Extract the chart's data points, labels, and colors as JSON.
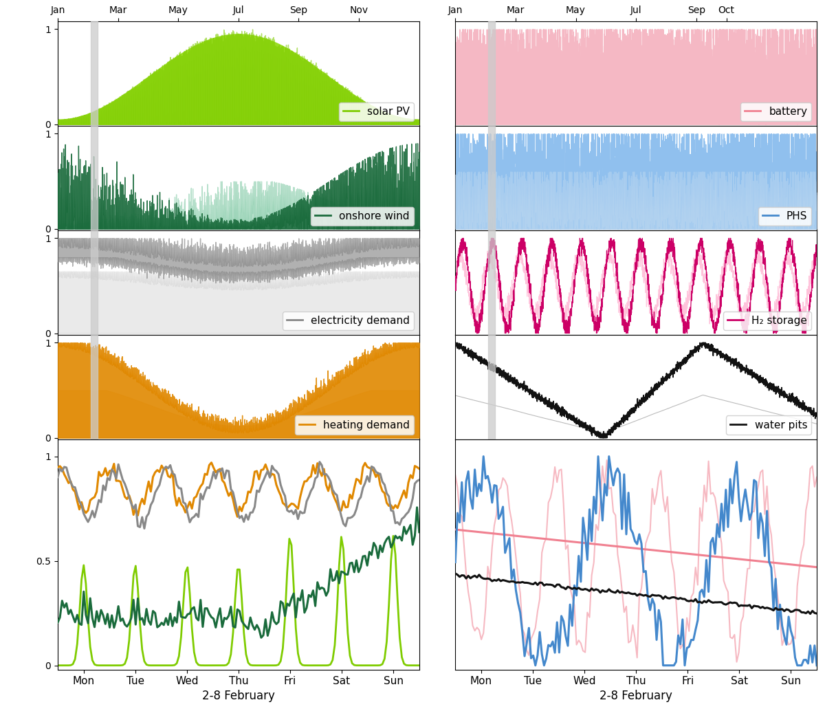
{
  "colors": {
    "solar_pv_line": "#7FCC00",
    "solar_pv_fill": "#99DD22",
    "solar_pv_fill_light": "#CCFF99",
    "onshore_wind_dark": "#1A6B3C",
    "onshore_wind_light": "#88CCAA",
    "elec_demand_dark": "#888888",
    "elec_demand_light": "#CCCCCC",
    "heating_demand_dark": "#E08800",
    "heating_demand_light": "#F5CC88",
    "battery_fill": "#F5B8C4",
    "battery_line": "#F08090",
    "phs_fill": "#90C0EE",
    "phs_line": "#4488CC",
    "phs_light": "#BDD8F0",
    "h2_dark": "#CC0066",
    "h2_light": "#FFAACC",
    "water_black": "#111111",
    "water_gray": "#AAAAAA",
    "highlight": "#CCCCCC"
  },
  "months_left": [
    "Jan",
    "Mar",
    "May",
    "Jul",
    "Sep",
    "Nov"
  ],
  "months_right": [
    "Jan",
    "Mar",
    "May",
    "Jul",
    "Sep",
    "Oct"
  ],
  "days": [
    "Mon",
    "Tue",
    "Wed",
    "Thu",
    "Fri",
    "Sat",
    "Sun"
  ],
  "xlabel_bottom": "2-8 February",
  "legends": {
    "solar_pv": "solar PV",
    "onshore_wind": "onshore wind",
    "elec_demand": "electricity demand",
    "heat_demand": "heating demand",
    "battery": "battery",
    "phs": "PHS",
    "h2": "H₂ storage",
    "water": "water pits"
  }
}
